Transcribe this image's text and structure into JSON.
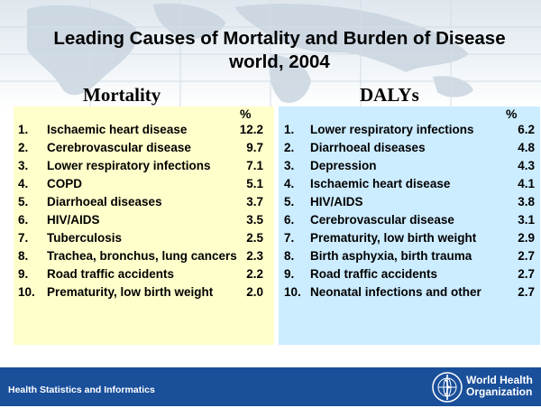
{
  "title_line1": "Leading Causes of Mortality and Burden of Disease",
  "title_line2": "world, 2004",
  "mortality": {
    "heading": "Mortality",
    "pct_label": "%",
    "rows": [
      {
        "num": "1.",
        "name": "Ischaemic heart disease",
        "val": "12.2"
      },
      {
        "num": "2.",
        "name": "Cerebrovascular disease",
        "val": "9.7"
      },
      {
        "num": "3.",
        "name": "Lower respiratory infections",
        "val": "7.1"
      },
      {
        "num": "4.",
        "name": "COPD",
        "val": "5.1"
      },
      {
        "num": "5.",
        "name": "Diarrhoeal diseases",
        "val": "3.7"
      },
      {
        "num": "6.",
        "name": "HIV/AIDS",
        "val": "3.5"
      },
      {
        "num": "7.",
        "name": "Tuberculosis",
        "val": "2.5"
      },
      {
        "num": "8.",
        "name": "Trachea, bronchus, lung cancers",
        "val": "2.3"
      },
      {
        "num": "9.",
        "name": "Road traffic accidents",
        "val": "2.2"
      },
      {
        "num": "10.",
        "name": "Prematurity, low birth weight",
        "val": "2.0"
      }
    ]
  },
  "dalys": {
    "heading": "DALYs",
    "pct_label": "%",
    "rows": [
      {
        "num": "1.",
        "name": "Lower respiratory infections",
        "val": "6.2"
      },
      {
        "num": "2.",
        "name": "Diarrhoeal diseases",
        "val": "4.8"
      },
      {
        "num": "3.",
        "name": "Depression",
        "val": "4.3"
      },
      {
        "num": "4.",
        "name": "Ischaemic heart disease",
        "val": "4.1"
      },
      {
        "num": "5.",
        "name": "HIV/AIDS",
        "val": "3.8"
      },
      {
        "num": "6.",
        "name": "Cerebrovascular disease",
        "val": "3.1"
      },
      {
        "num": "7.",
        "name": "Prematurity, low birth weight",
        "val": "2.9"
      },
      {
        "num": "8.",
        "name": "Birth asphyxia, birth trauma",
        "val": "2.7"
      },
      {
        "num": "9.",
        "name": "Road traffic accidents",
        "val": "2.7"
      },
      {
        "num": "10.",
        "name": "Neonatal infections and other",
        "val": "2.7"
      }
    ]
  },
  "footer": {
    "left_text": "Health Statistics and Informatics",
    "org_line1": "World Health",
    "org_line2": "Organization",
    "logo_icon": "who-emblem-icon"
  },
  "colors": {
    "mortality_panel": "#ffffcc",
    "dalys_panel": "#ccecff",
    "footer_bar": "#1a4f9a"
  }
}
